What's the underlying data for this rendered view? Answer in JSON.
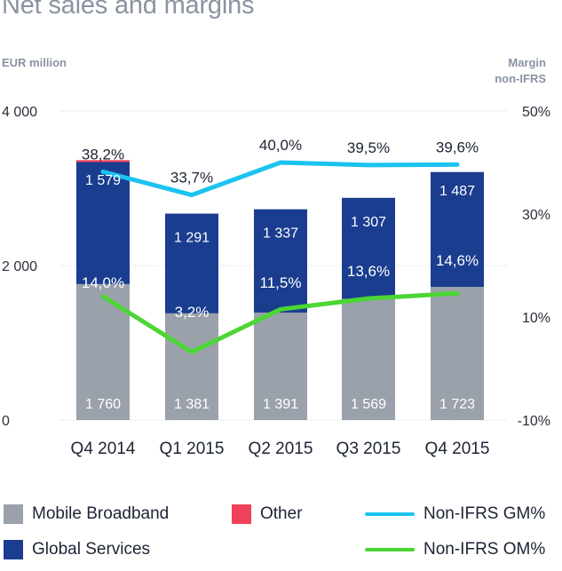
{
  "title": "Net sales and margins",
  "left_axis_unit": "EUR million",
  "right_axis_unit_line1": "Margin",
  "right_axis_unit_line2": "non-IFRS",
  "legend": {
    "mobile_broadband": "Mobile Broadband",
    "other": "Other",
    "gm": "Non-IFRS GM%",
    "global_services": "Global Services",
    "om": "Non-IFRS OM%"
  },
  "colors": {
    "mobile_broadband": "#9aa1ab",
    "global_services": "#1a3d8f",
    "other": "#f0425a",
    "gm": "#1cc3ef",
    "om": "#4bd634"
  },
  "chart_data": {
    "type": "bar",
    "stacked": true,
    "title": "Net sales and margins",
    "categories": [
      "Q4 2014",
      "Q1 2015",
      "Q2 2015",
      "Q3 2015",
      "Q4 2015"
    ],
    "series": [
      {
        "name": "Mobile Broadband",
        "values": [
          1760,
          1381,
          1391,
          1569,
          1723
        ],
        "labels": [
          "1 760",
          "1 381",
          "1 391",
          "1 569",
          "1 723"
        ]
      },
      {
        "name": "Global Services",
        "values": [
          1579,
          1291,
          1337,
          1307,
          1487
        ],
        "labels": [
          "1 579",
          "1 291",
          "1 337",
          "1 307",
          "1 487"
        ]
      },
      {
        "name": "Other",
        "values": [
          25,
          0,
          0,
          0,
          0
        ]
      }
    ],
    "lines": [
      {
        "name": "Non-IFRS GM%",
        "values": [
          38.2,
          33.7,
          40.0,
          39.5,
          39.6
        ],
        "labels": [
          "38,2%",
          "33,7%",
          "40,0%",
          "39,5%",
          "39,6%"
        ]
      },
      {
        "name": "Non-IFRS OM%",
        "values": [
          14.0,
          3.2,
          11.5,
          13.6,
          14.6
        ],
        "labels": [
          "14,0%",
          "3,2%",
          "11,5%",
          "13,6%",
          "14,6%"
        ]
      }
    ],
    "ylabel": "EUR million",
    "y2label": "Margin non-IFRS",
    "ylim": [
      0,
      4000
    ],
    "y2lim": [
      -10,
      50
    ],
    "yticks": [
      "0",
      "2 000",
      "4 000"
    ],
    "y2ticks": [
      "-10%",
      "10%",
      "30%",
      "50%"
    ],
    "legend_position": "bottom"
  }
}
